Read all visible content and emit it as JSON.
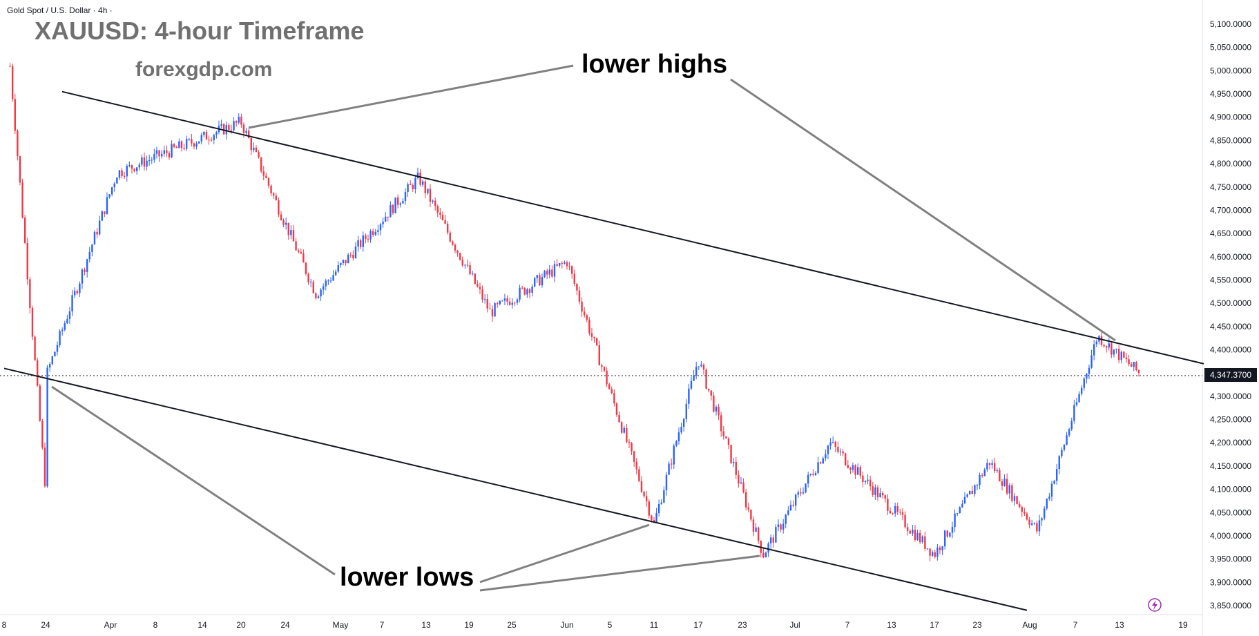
{
  "header": {
    "symbol_line": "Gold Spot / U.S. Dollar · 4h ·",
    "title": "XAUUSD: 4-hour Timeframe",
    "subtitle": "forexgdp.com"
  },
  "annotations": {
    "lower_highs": "lower highs",
    "lower_lows": "lower lows"
  },
  "current_price": "4,347.3700",
  "colors": {
    "up": "#2962ff",
    "down": "#f23645",
    "trend_line": "#131722",
    "pointer": "#808080"
  },
  "chart_data": {
    "type": "candlestick",
    "title": "XAUUSD: 4-hour Timeframe",
    "xlabel": "",
    "ylabel": "",
    "ylim": [
      3830,
      5130
    ],
    "y_ticks": [
      "5,100.0000",
      "5,050.0000",
      "5,000.0000",
      "4,950.0000",
      "4,900.0000",
      "4,850.0000",
      "4,800.0000",
      "4,750.0000",
      "4,700.0000",
      "4,650.0000",
      "4,600.0000",
      "4,550.0000",
      "4,500.0000",
      "4,450.0000",
      "4,400.0000",
      "4,350.0000",
      "4,300.0000",
      "4,250.0000",
      "4,200.0000",
      "4,150.0000",
      "4,100.0000",
      "4,050.0000",
      "4,000.0000",
      "3,950.0000",
      "3,900.0000",
      "3,850.0000"
    ],
    "x_ticks": [
      "8",
      "24",
      "Apr",
      "8",
      "14",
      "20",
      "24",
      "May",
      "7",
      "13",
      "19",
      "25",
      "Jun",
      "5",
      "11",
      "17",
      "23",
      "Jul",
      "7",
      "13",
      "17",
      "23",
      "Aug",
      "7",
      "13",
      "19"
    ],
    "grid": false,
    "key_points": [
      {
        "date": "Mar 18",
        "price": 5010
      },
      {
        "date": "Mar 24",
        "price": 4100
      },
      {
        "date": "Mar 24",
        "price": 4340
      },
      {
        "date": "Apr 2",
        "price": 4780
      },
      {
        "date": "Apr 20",
        "price": 4890
      },
      {
        "date": "Apr 28",
        "price": 4520
      },
      {
        "date": "May 12",
        "price": 4770
      },
      {
        "date": "May 22",
        "price": 4480
      },
      {
        "date": "Jun 1",
        "price": 4590
      },
      {
        "date": "Jun 11",
        "price": 4025
      },
      {
        "date": "Jun 17",
        "price": 4380
      },
      {
        "date": "Jun 26",
        "price": 3960
      },
      {
        "date": "Jul 5",
        "price": 4200
      },
      {
        "date": "Jul 17",
        "price": 3960
      },
      {
        "date": "Jul 25",
        "price": 4160
      },
      {
        "date": "Aug 2",
        "price": 4010
      },
      {
        "date": "Aug 10",
        "price": 4430
      },
      {
        "date": "Aug 15",
        "price": 4347
      }
    ],
    "trendlines": [
      {
        "name": "upper",
        "points": [
          {
            "date": "Mar 26",
            "price": 4955
          },
          {
            "date": "Aug 19",
            "price": 4370
          }
        ]
      },
      {
        "name": "lower",
        "points": [
          {
            "date": "Mar 17",
            "price": 4360
          },
          {
            "date": "Aug 1",
            "price": 3840
          }
        ]
      }
    ]
  }
}
